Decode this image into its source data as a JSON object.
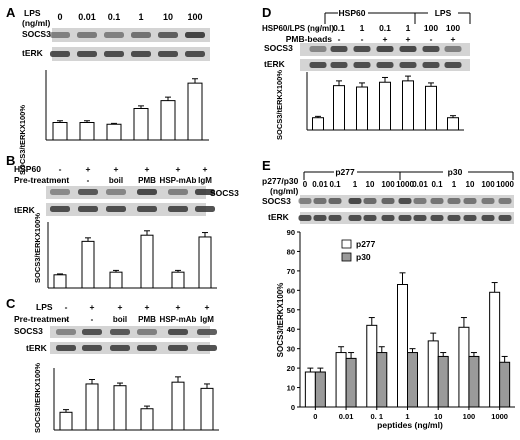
{
  "colors": {
    "open_bar": "#ffffff",
    "gray_bar": "#9a9a9a",
    "band": "#3a3a3a",
    "blot_bg": "#d4d4d4"
  },
  "panels": {
    "A": {
      "label": "A",
      "condition_label": "LPS",
      "unit_label": "(ng/ml)",
      "doses": [
        "0",
        "0.01",
        "0.1",
        "1",
        "10",
        "100"
      ],
      "blots": [
        "SOCS3",
        "tERK"
      ],
      "ylabel": "SOCS3/tERKX100%"
    },
    "B": {
      "label": "B",
      "row1_label": "HSP60",
      "row1_values": [
        "-",
        "+",
        "+",
        "+",
        "+",
        "+"
      ],
      "row2_label": "Pre-treatment",
      "row2_values": [
        "-",
        "-",
        "boil",
        "PMB",
        "HSP-mAb",
        "IgM"
      ],
      "blots": [
        "SOCS3",
        "tERK"
      ],
      "ylabel": "SOCS3/tERKX100%"
    },
    "C": {
      "label": "C",
      "row1_label": "LPS",
      "row1_values": [
        "-",
        "+",
        "+",
        "+",
        "+",
        "+"
      ],
      "row2_label": "Pre-treatment",
      "row2_values": [
        "-",
        "-",
        "boil",
        "PMB",
        "HSP-mAb",
        "IgM"
      ],
      "blots": [
        "SOCS3",
        "tERK"
      ],
      "ylabel": "SOCS3/tERKX100%"
    },
    "D": {
      "label": "D",
      "group_labels": [
        "HSP60",
        "LPS"
      ],
      "row1_label": "HSP60/LPS (ng/ml)",
      "row1_values": [
        "-",
        "0.1",
        "1",
        "0.1",
        "1",
        "100",
        "100"
      ],
      "row2_label": "PMB-beads",
      "row2_values": [
        "-",
        "-",
        "-",
        "+",
        "+",
        "-",
        "+"
      ],
      "blots": [
        "SOCS3",
        "tERK"
      ],
      "ylabel": "SOCS3/tERKX100%"
    },
    "E": {
      "label": "E",
      "group_labels": [
        "p277",
        "p30"
      ],
      "row1_label": "p277/p30",
      "row1_unit": "(ng/ml)",
      "row1_values": [
        "0",
        "0.01",
        "0.1",
        "1",
        "10",
        "100",
        "1000",
        "0.01",
        "0.1",
        "1",
        "10",
        "100",
        "1000"
      ],
      "blots": [
        "SOCS3",
        "tERK"
      ],
      "ylabel": "SOCS3/tERKX100%",
      "xlabel": "peptides (ng/ml)"
    }
  },
  "chart_data": [
    {
      "panel": "A",
      "type": "bar",
      "categories": [
        "0",
        "0.01",
        "0.1",
        "1",
        "10",
        "100"
      ],
      "values": [
        20,
        20,
        18,
        36,
        45,
        65
      ],
      "errors": [
        2,
        2,
        1,
        3,
        4,
        5
      ],
      "ylim": [
        0,
        80
      ],
      "yticks": [],
      "ylabel": "SOCS3/tERKX100%",
      "xlabel": ""
    },
    {
      "panel": "B",
      "type": "bar",
      "categories": [
        "1",
        "2",
        "3",
        "4",
        "5",
        "6"
      ],
      "values": [
        15,
        53,
        18,
        60,
        18,
        58
      ],
      "errors": [
        1,
        4,
        2,
        5,
        2,
        5
      ],
      "ylim": [
        0,
        75
      ],
      "yticks": [],
      "ylabel": "SOCS3/tERKX100%",
      "xlabel": ""
    },
    {
      "panel": "C",
      "type": "bar",
      "categories": [
        "1",
        "2",
        "3",
        "4",
        "5",
        "6"
      ],
      "values": [
        20,
        52,
        50,
        24,
        54,
        47
      ],
      "errors": [
        3,
        5,
        3,
        3,
        6,
        5
      ],
      "ylim": [
        0,
        70
      ],
      "yticks": [],
      "ylabel": "SOCS3/tERKX100%",
      "xlabel": ""
    },
    {
      "panel": "D",
      "type": "bar",
      "categories": [
        "1",
        "2",
        "3",
        "4",
        "5",
        "6",
        "7"
      ],
      "values": [
        18,
        65,
        63,
        70,
        72,
        64,
        18
      ],
      "errors": [
        2,
        7,
        6,
        7,
        7,
        5,
        3
      ],
      "ylim": [
        0,
        85
      ],
      "yticks": [],
      "ylabel": "SOCS3/tERKX100%",
      "xlabel": ""
    },
    {
      "panel": "E",
      "type": "bar",
      "categories": [
        "0",
        "0.01",
        "0. 1",
        "1",
        "10",
        "100",
        "1000"
      ],
      "series": [
        {
          "name": "p277",
          "values": [
            18,
            28,
            42,
            63,
            34,
            41,
            59
          ],
          "errors": [
            2,
            3,
            4,
            6,
            4,
            5,
            5
          ]
        },
        {
          "name": "p30",
          "values": [
            18,
            25,
            28,
            28,
            26,
            26,
            23
          ],
          "errors": [
            2,
            3,
            3,
            2,
            2,
            2,
            3
          ]
        }
      ],
      "ylim": [
        0,
        90
      ],
      "yticks": [
        "0",
        "10",
        "20",
        "30",
        "40",
        "50",
        "60",
        "70",
        "80",
        "90"
      ],
      "ylabel": "SOCS3/tERKX100%",
      "xlabel": "peptides (ng/ml)",
      "legend": "top-left"
    }
  ]
}
